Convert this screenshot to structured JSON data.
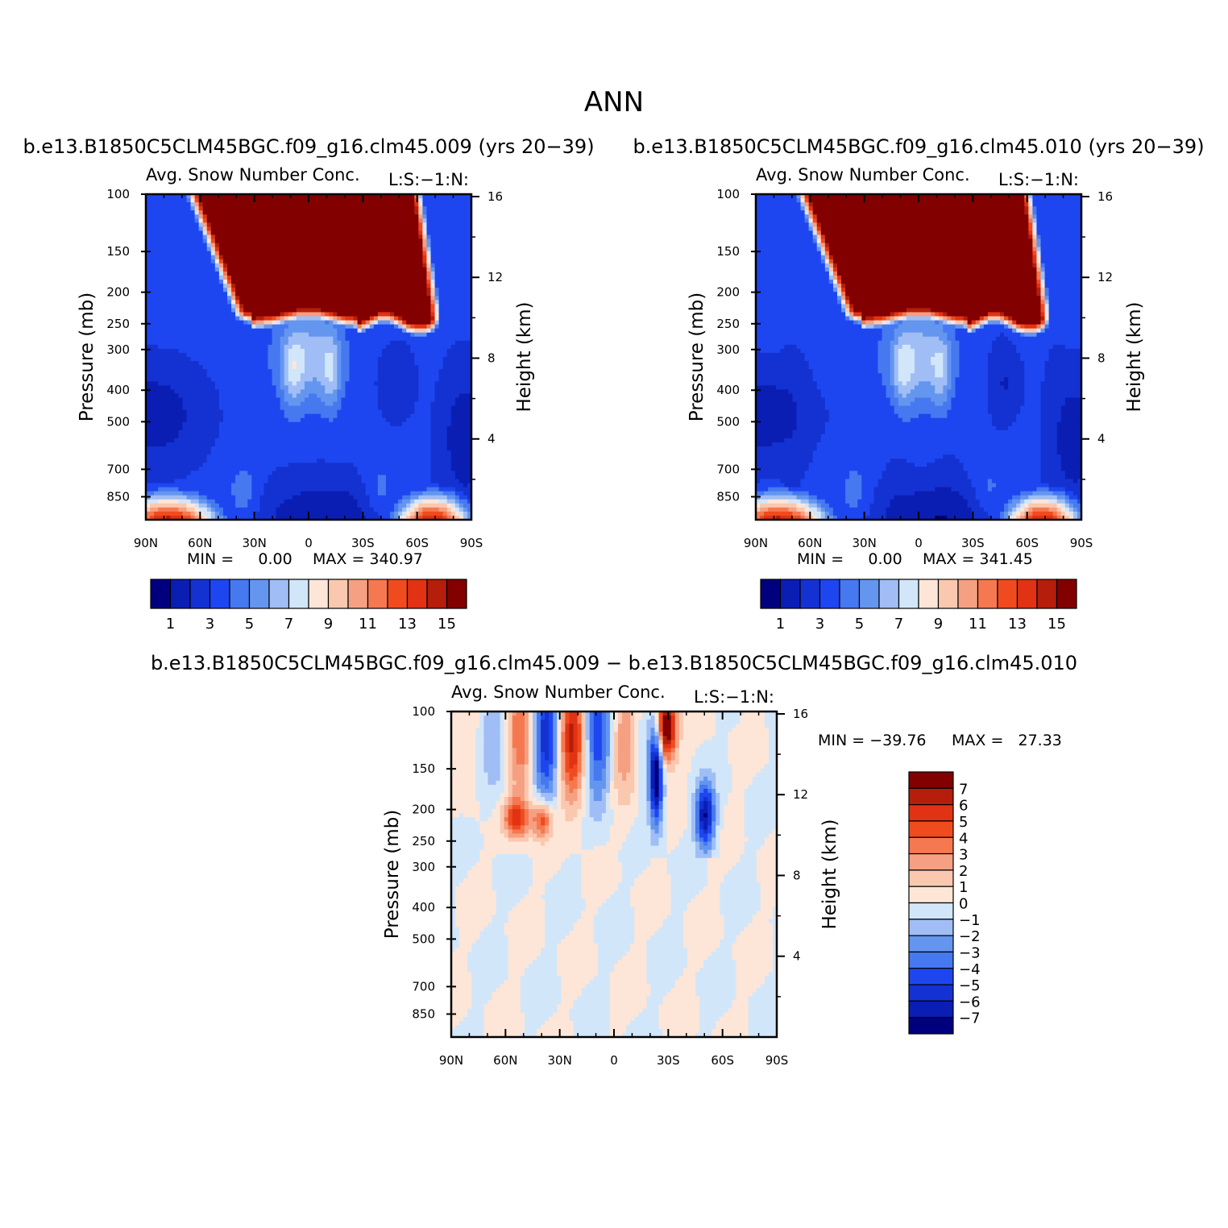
{
  "figure": {
    "title": "ANN"
  },
  "colors": {
    "scale": [
      "#00007f",
      "#0a1eb4",
      "#1432d2",
      "#1e46f0",
      "#4678f0",
      "#6496f0",
      "#a0bef5",
      "#d2e6fa",
      "#fde6d7",
      "#fac8af",
      "#f5a082",
      "#f57850",
      "#f04b1e",
      "#e13214",
      "#b41e0a",
      "#820000"
    ]
  },
  "chart_data": [
    {
      "type": "contour",
      "case_title": "b.e13.B1850C5CLM45BGC.f09_g16.clm45.009 (yrs 20−39)",
      "variable_title": "Avg. Snow Number Conc.",
      "units_label": "L:S:−1:N:",
      "ylabel_left": "Pressure (mb)",
      "ylabel_right": "Height (km)",
      "x_ticks": [
        "90N",
        "60N",
        "30N",
        "0",
        "30S",
        "60S",
        "90S"
      ],
      "x_values": [
        90,
        60,
        30,
        0,
        -30,
        -60,
        -90
      ],
      "y_ticks_pressure": [
        100,
        150,
        200,
        250,
        300,
        400,
        500,
        700,
        850
      ],
      "y_ticks_height": [
        16,
        12,
        8,
        4
      ],
      "min_text": "MIN =     0.00",
      "max_text": "MAX = 340.97",
      "colorbar_labels": [
        "1",
        "3",
        "5",
        "7",
        "9",
        "11",
        "13",
        "15"
      ],
      "levels": [
        1,
        2,
        3,
        4,
        5,
        6,
        7,
        8,
        9,
        10,
        11,
        12,
        13,
        14,
        15
      ]
    },
    {
      "type": "contour",
      "case_title": "b.e13.B1850C5CLM45BGC.f09_g16.clm45.010 (yrs 20−39)",
      "variable_title": "Avg. Snow Number Conc.",
      "units_label": "L:S:−1:N:",
      "ylabel_left": "Pressure (mb)",
      "ylabel_right": "Height (km)",
      "x_ticks": [
        "90N",
        "60N",
        "30N",
        "0",
        "30S",
        "60S",
        "90S"
      ],
      "x_values": [
        90,
        60,
        30,
        0,
        -30,
        -60,
        -90
      ],
      "y_ticks_pressure": [
        100,
        150,
        200,
        250,
        300,
        400,
        500,
        700,
        850
      ],
      "y_ticks_height": [
        16,
        12,
        8,
        4
      ],
      "min_text": "MIN =     0.00",
      "max_text": "MAX = 341.45",
      "colorbar_labels": [
        "1",
        "3",
        "5",
        "7",
        "9",
        "11",
        "13",
        "15"
      ],
      "levels": [
        1,
        2,
        3,
        4,
        5,
        6,
        7,
        8,
        9,
        10,
        11,
        12,
        13,
        14,
        15
      ]
    },
    {
      "type": "contour",
      "case_title": "b.e13.B1850C5CLM45BGC.f09_g16.clm45.009 − b.e13.B1850C5CLM45BGC.f09_g16.clm45.010",
      "variable_title": "Avg. Snow Number Conc.",
      "units_label": "L:S:−1:N:",
      "ylabel_left": "Pressure (mb)",
      "ylabel_right": "Height (km)",
      "x_ticks": [
        "90N",
        "60N",
        "30N",
        "0",
        "30S",
        "60S",
        "90S"
      ],
      "x_values": [
        90,
        60,
        30,
        0,
        -30,
        -60,
        -90
      ],
      "y_ticks_pressure": [
        100,
        150,
        200,
        250,
        300,
        400,
        500,
        700,
        850
      ],
      "y_ticks_height": [
        16,
        12,
        8,
        4
      ],
      "min_text": "MIN = −39.76",
      "max_text": "MAX =   27.33",
      "colorbar_labels": [
        "7",
        "6",
        "5",
        "4",
        "3",
        "2",
        "1",
        "0",
        "−1",
        "−2",
        "−3",
        "−4",
        "−5",
        "−6",
        "−7"
      ],
      "levels": [
        -7,
        -6,
        -5,
        -4,
        -3,
        -2,
        -1,
        0,
        1,
        2,
        3,
        4,
        5,
        6,
        7
      ]
    }
  ]
}
